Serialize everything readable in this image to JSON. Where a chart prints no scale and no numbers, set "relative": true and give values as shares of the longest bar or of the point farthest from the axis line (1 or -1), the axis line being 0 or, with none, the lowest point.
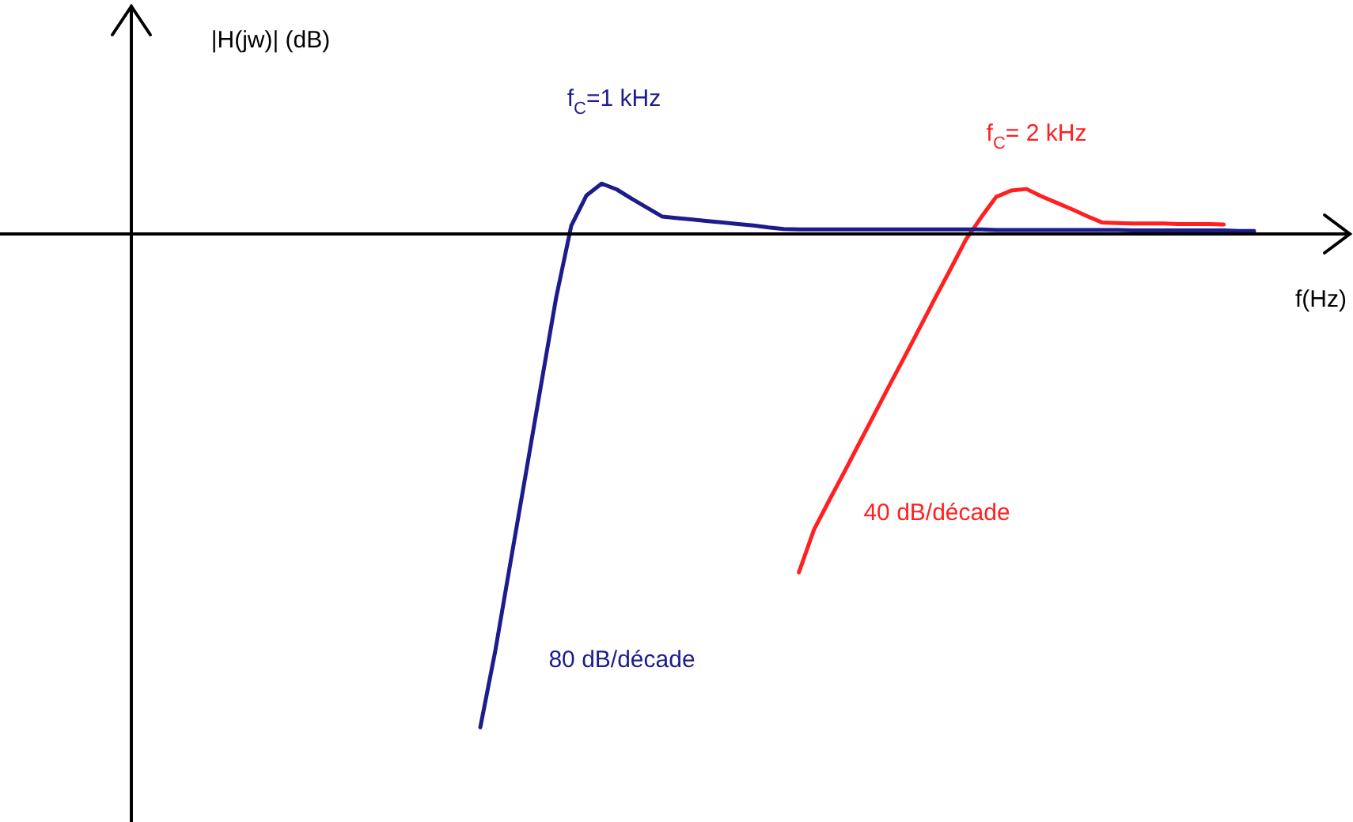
{
  "chart_data": {
    "type": "line",
    "relative": true,
    "xlabel": "f(Hz)",
    "tick_labels": false,
    "legend": false,
    "marker": "none",
    "line_style": "solid",
    "categories": [
      null,
      null,
      null,
      null,
      null,
      null,
      null,
      null,
      null,
      null,
      null,
      null,
      null,
      null,
      null,
      null,
      null,
      null,
      null,
      null,
      null,
      null,
      null,
      null,
      null,
      null,
      null,
      null,
      null,
      null,
      null,
      null,
      null,
      null,
      null,
      null,
      null,
      null,
      null,
      null,
      null,
      null,
      null,
      null,
      null,
      null,
      null,
      null,
      null,
      null,
      null,
      null,
      null,
      null,
      null,
      null,
      null,
      null,
      null,
      null,
      null,
      null,
      null,
      null,
      null,
      null,
      null,
      null,
      null,
      null,
      null,
      null,
      null,
      null,
      null,
      null,
      null,
      null,
      null,
      null,
      null
    ],
    "series": [
      {
        "color": "#1c1c8c",
        "values": [
          null,
          null,
          null,
          null,
          null,
          null,
          null,
          null,
          null,
          null,
          null,
          null,
          null,
          null,
          null,
          null,
          null,
          null,
          null,
          null,
          null,
          null,
          null,
          -1,
          -0.843,
          -0.664,
          -0.486,
          -0.307,
          -0.129,
          0.017,
          0.078,
          0.102,
          0.09,
          0.071,
          0.053,
          0.035,
          0.032,
          0.029,
          0.026,
          0.023,
          0.02,
          0.017,
          0.013,
          0.01,
          0.009,
          0.009,
          0.009,
          0.009,
          0.009,
          0.009,
          0.009,
          0.009,
          0.009,
          0.009,
          0.009,
          0.009,
          0.009,
          0.008,
          0.008,
          0.008,
          0.008,
          0.008,
          0.008,
          0.008,
          0.008,
          0.008,
          0.007,
          0.007,
          0.007,
          0.007,
          0.007,
          0.007,
          0.007,
          0.006,
          0.006,
          null,
          null,
          null,
          null,
          null,
          null
        ]
      },
      {
        "color": "#ff2020",
        "values": [
          null,
          null,
          null,
          null,
          null,
          null,
          null,
          null,
          null,
          null,
          null,
          null,
          null,
          null,
          null,
          null,
          null,
          null,
          null,
          null,
          null,
          null,
          null,
          null,
          null,
          null,
          null,
          null,
          null,
          null,
          null,
          null,
          null,
          null,
          null,
          null,
          null,
          null,
          null,
          null,
          null,
          null,
          null,
          null,
          -0.686,
          -0.599,
          -0.54,
          -0.482,
          -0.423,
          -0.364,
          -0.305,
          -0.247,
          -0.188,
          -0.129,
          -0.071,
          -0.012,
          0.033,
          0.075,
          0.088,
          0.091,
          0.076,
          0.063,
          0.05,
          0.036,
          0.023,
          0.022,
          0.021,
          0.021,
          0.021,
          0.02,
          0.02,
          0.02,
          0.019,
          null,
          null,
          null,
          null,
          null,
          null,
          null,
          null
        ]
      }
    ],
    "annotations": [
      "|H(jw)| (dB)",
      "f$_{C}$=1 kHz",
      "f$_{C}$= 2 kHz",
      "40 dB/décade",
      "80 dB/décade"
    ]
  }
}
